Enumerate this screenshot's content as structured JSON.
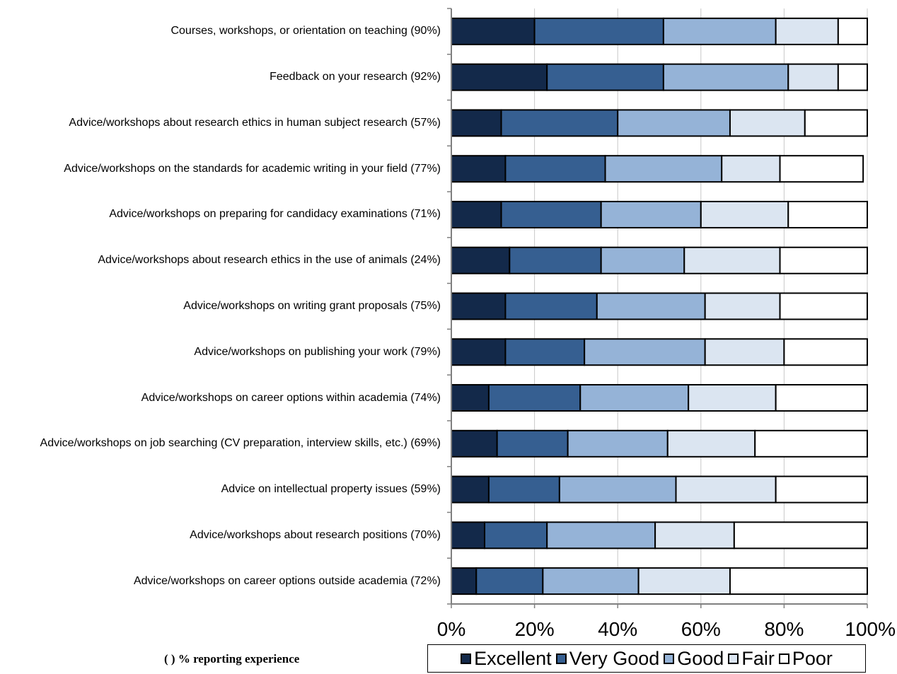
{
  "chart_data": {
    "type": "bar",
    "orientation": "horizontal",
    "stacked": true,
    "percent_scale": true,
    "categories": [
      "Courses, workshops, or orientation on teaching (90%)",
      "Feedback on your research (92%)",
      "Advice/workshops about research ethics in human subject research (57%)",
      "Advice/workshops on the standards for academic writing in your field (77%)",
      "Advice/workshops on preparing for candidacy examinations (71%)",
      "Advice/workshops about research ethics in the use of animals (24%)",
      "Advice/workshops on writing grant proposals (75%)",
      "Advice/workshops on publishing your work (79%)",
      "Advice/workshops on career options within academia (74%)",
      "Advice/workshops on job searching (CV preparation, interview skills, etc.) (69%)",
      "Advice on intellectual property issues (59%)",
      "Advice/workshops about research positions (70%)",
      "Advice/workshops on career options outside academia (72%)"
    ],
    "series": [
      {
        "name": "Excellent",
        "color": "#13294a",
        "values": [
          20,
          23,
          12,
          13,
          12,
          14,
          13,
          13,
          9,
          11,
          9,
          8,
          6
        ]
      },
      {
        "name": "Very Good",
        "color": "#365f91",
        "values": [
          31,
          28,
          28,
          24,
          24,
          22,
          22,
          19,
          22,
          17,
          17,
          15,
          16
        ]
      },
      {
        "name": "Good",
        "color": "#95b3d7",
        "values": [
          27,
          30,
          27,
          28,
          24,
          20,
          26,
          29,
          26,
          24,
          28,
          26,
          23
        ]
      },
      {
        "name": "Fair",
        "color": "#dbe5f1",
        "values": [
          15,
          12,
          18,
          14,
          21,
          23,
          18,
          19,
          21,
          21,
          24,
          19,
          22
        ]
      },
      {
        "name": "Poor",
        "color": "#ffffff",
        "values": [
          7,
          7,
          15,
          20,
          19,
          21,
          21,
          20,
          22,
          27,
          22,
          32,
          33
        ]
      }
    ],
    "xlim": [
      0,
      100
    ],
    "x_ticks": [
      "0%",
      "20%",
      "40%",
      "60%",
      "80%",
      "100%"
    ],
    "grid": true,
    "legend_position": "bottom",
    "annotation": "( ) % reporting experience"
  }
}
